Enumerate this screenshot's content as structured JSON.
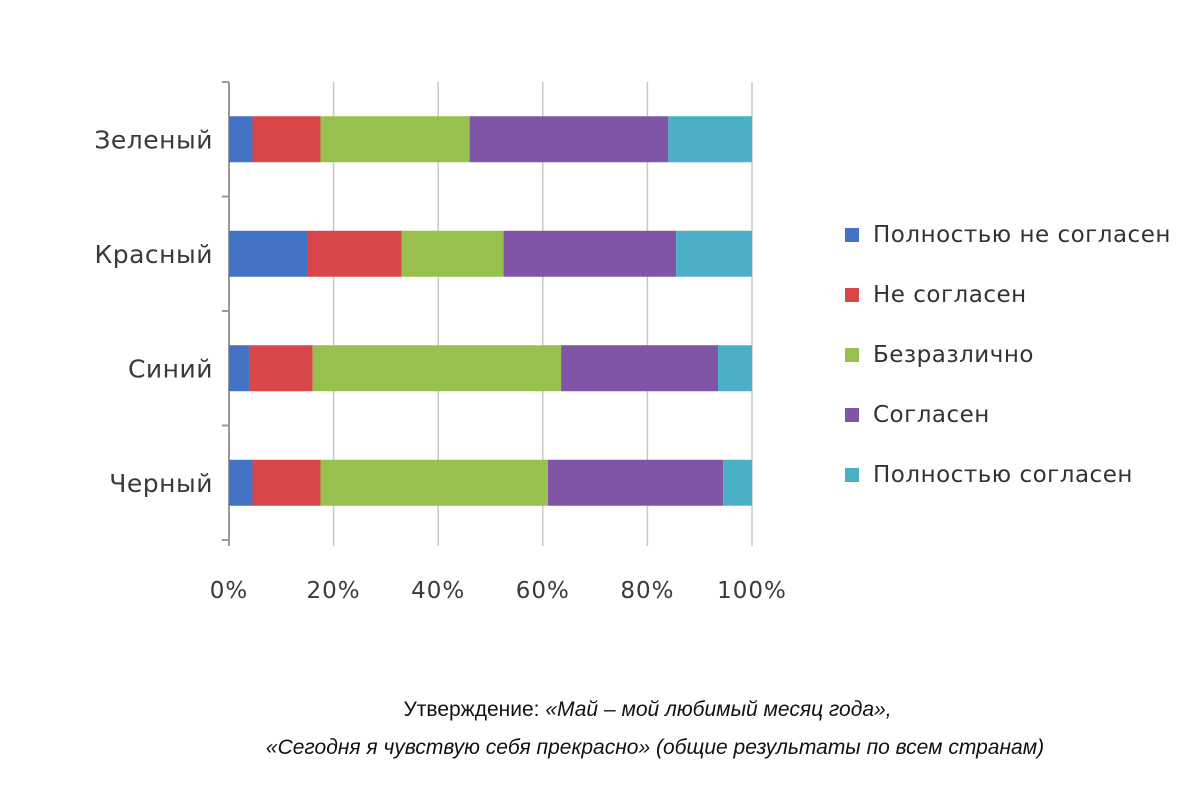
{
  "chart_data": {
    "type": "bar",
    "orientation": "horizontal",
    "stacked": "percent",
    "categories": [
      "Зеленый",
      "Красный",
      "Синий",
      "Черный"
    ],
    "series": [
      {
        "name": "Полностью не согласен",
        "color": "#4472C4",
        "values": [
          4.5,
          15,
          4,
          4.5
        ]
      },
      {
        "name": "Не согласен",
        "color": "#D9464A",
        "values": [
          13,
          18,
          12,
          13
        ]
      },
      {
        "name": "Безразлично",
        "color": "#98C04F",
        "values": [
          28.5,
          19.5,
          47.5,
          43.5
        ]
      },
      {
        "name": "Согласен",
        "color": "#8155A6",
        "values": [
          38,
          33,
          30,
          33.5
        ]
      },
      {
        "name": "Полностью согласен",
        "color": "#4BAFC6",
        "values": [
          16,
          14.5,
          6.5,
          5.5
        ]
      }
    ],
    "xlim": [
      0,
      100
    ],
    "x_ticks": [
      "0%",
      "20%",
      "40%",
      "60%",
      "80%",
      "100%"
    ],
    "grid": true,
    "legend_position": "right"
  },
  "legend_display": [
    "Полностью не согласен",
    "Не согласен",
    "Безразлично",
    "Согласен",
    "Полностью согласен"
  ],
  "caption": {
    "line1_prefix": "Утверждение: ",
    "line1_quote": "«Май – мой любимый месяц года»,",
    "line2_quote": "«Сегодня я чувствую себя прекрасно»",
    "line2_paren": " (общие результаты по всем странам)"
  }
}
